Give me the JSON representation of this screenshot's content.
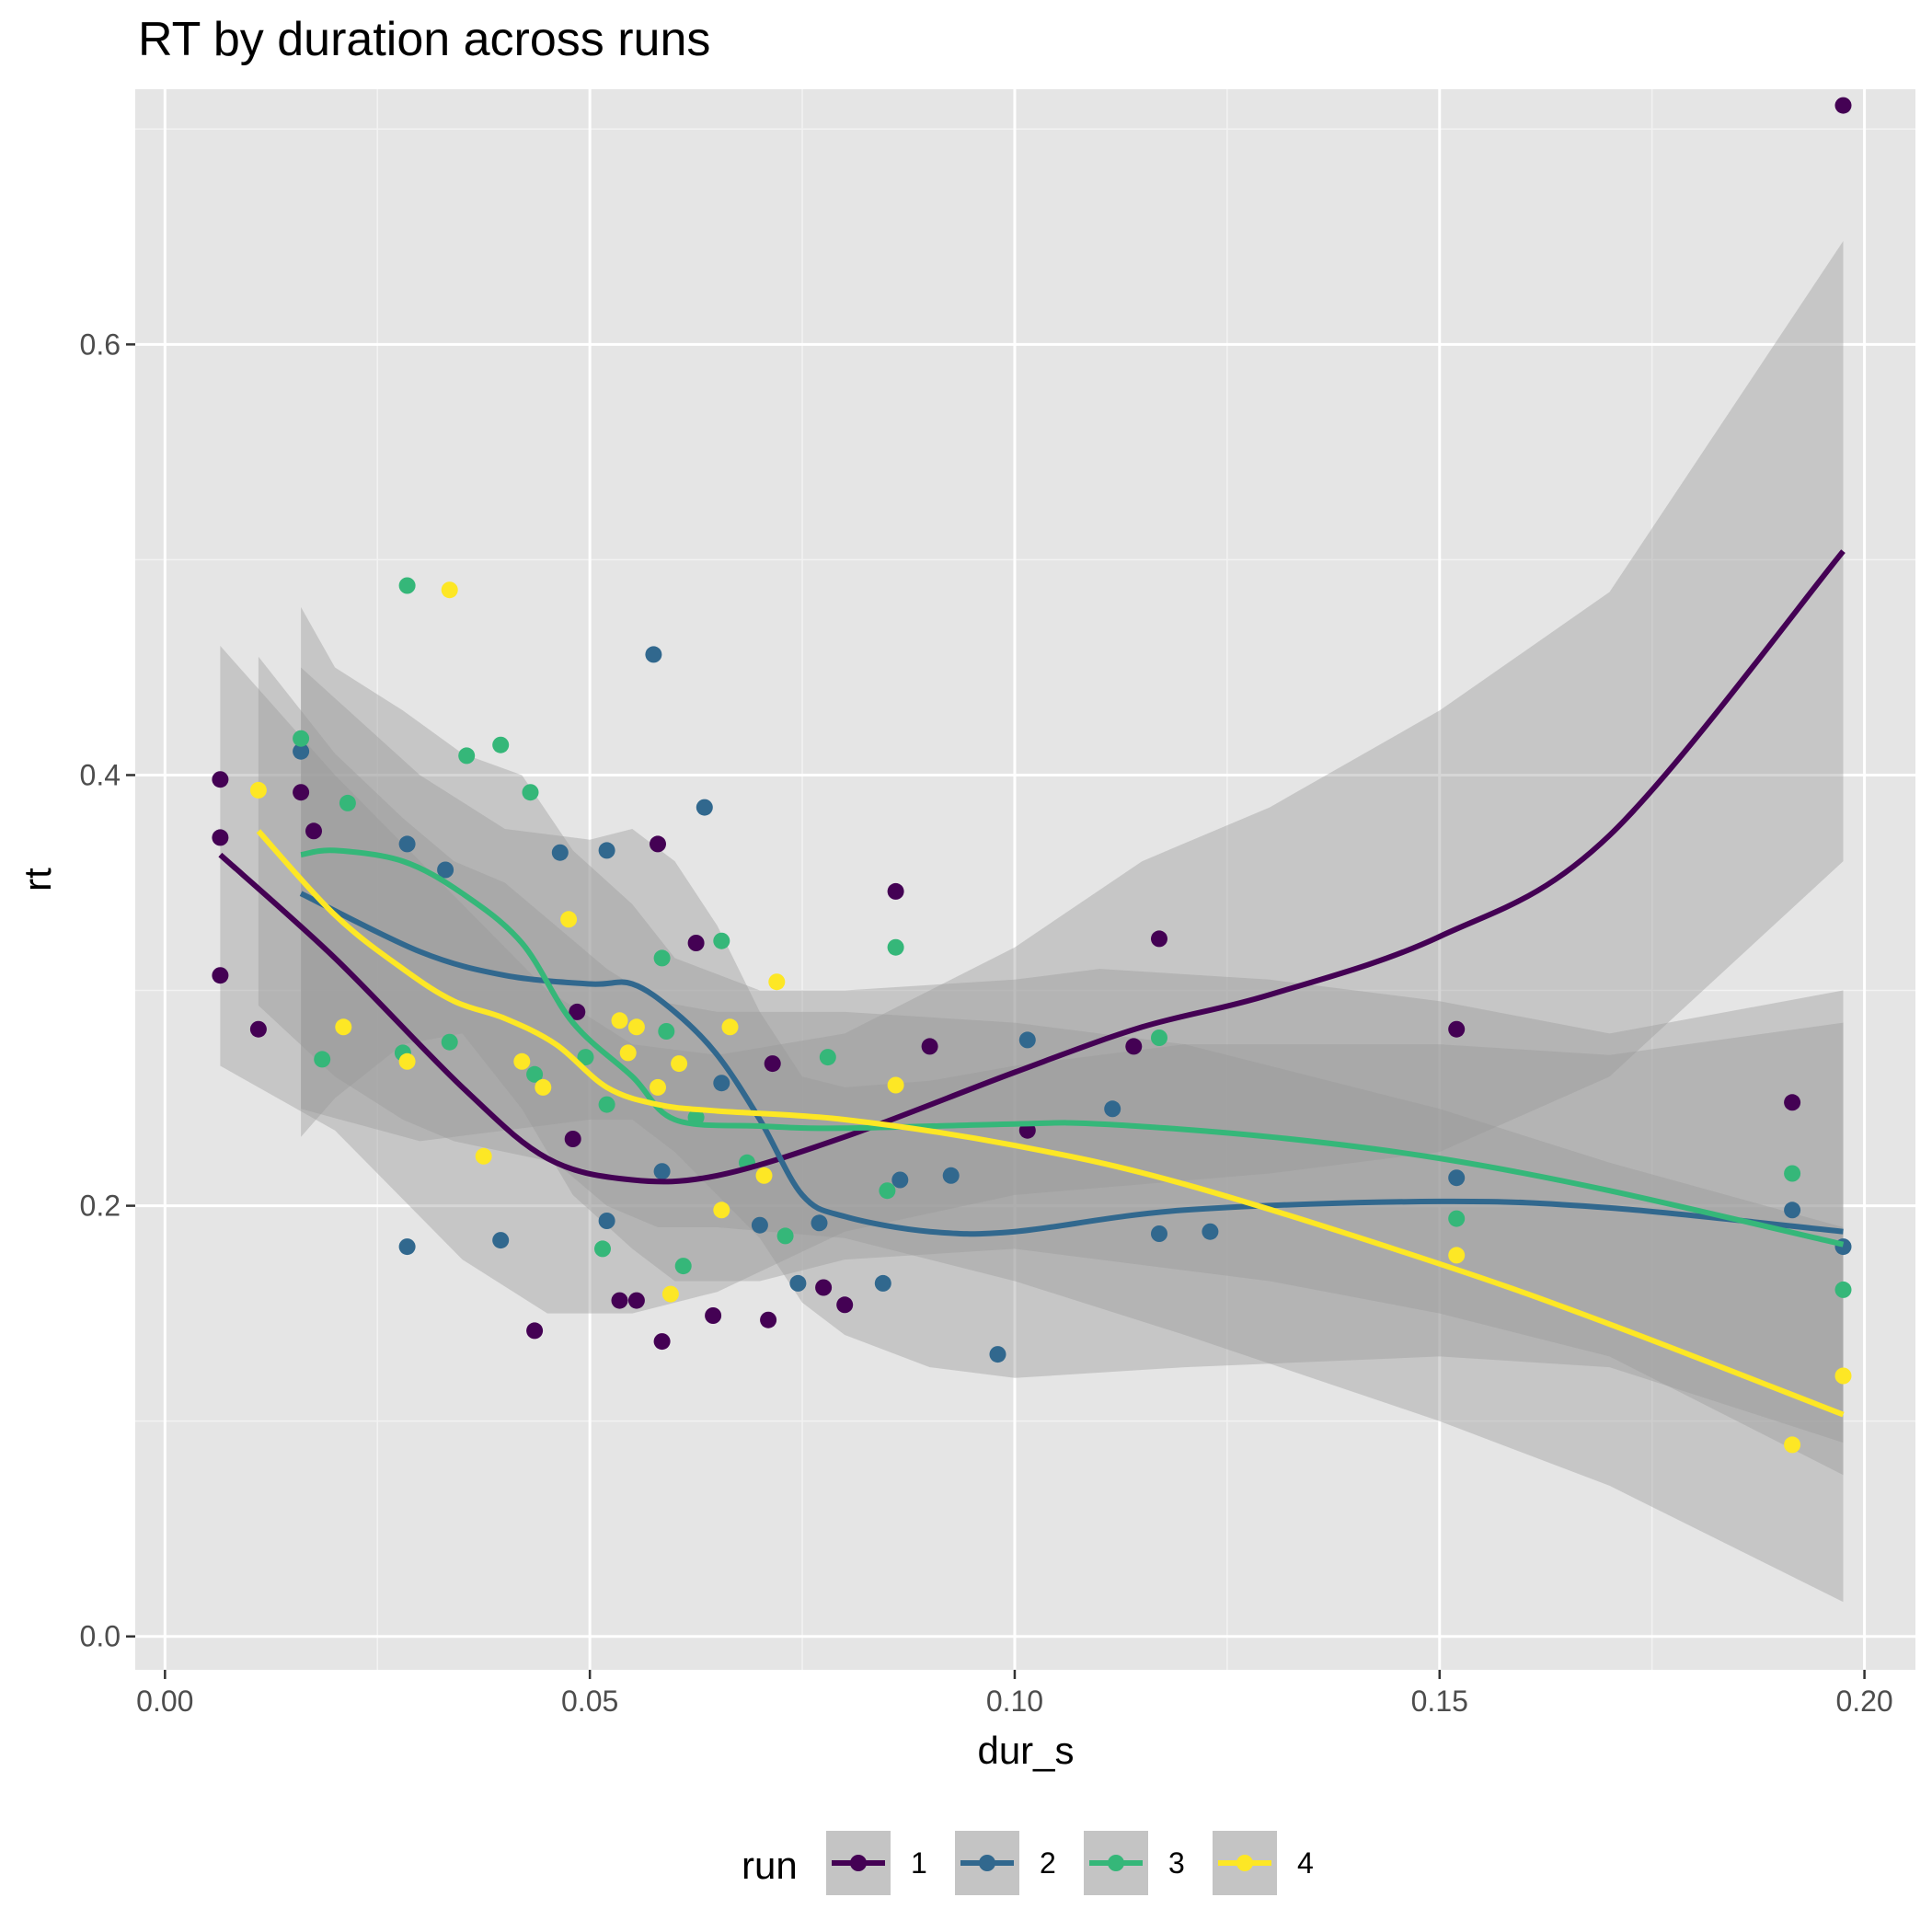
{
  "chart_data": {
    "type": "scatter",
    "title": "RT by duration across runs",
    "xlabel": "dur_s",
    "ylabel": "rt",
    "xlim": [
      -0.0035,
      0.206
    ],
    "ylim": [
      -0.0155,
      0.7185
    ],
    "x_ticks": [
      0.0,
      0.05,
      0.1,
      0.15,
      0.2
    ],
    "x_tick_labels": [
      "0.00",
      "0.05",
      "0.10",
      "0.15",
      "0.20"
    ],
    "y_ticks": [
      0.0,
      0.2,
      0.4,
      0.6
    ],
    "y_tick_labels": [
      "0.0",
      "0.2",
      "0.4",
      "0.6"
    ],
    "grid": true,
    "legend": {
      "title": "run",
      "position": "bottom"
    },
    "series": [
      {
        "name": "1",
        "color": "#440154",
        "points": [
          [
            0.0065,
            0.398
          ],
          [
            0.0065,
            0.371
          ],
          [
            0.0065,
            0.307
          ],
          [
            0.011,
            0.282
          ],
          [
            0.016,
            0.392
          ],
          [
            0.0175,
            0.374
          ],
          [
            0.0435,
            0.142
          ],
          [
            0.0485,
            0.29
          ],
          [
            0.048,
            0.231
          ],
          [
            0.0535,
            0.156
          ],
          [
            0.0555,
            0.156
          ],
          [
            0.058,
            0.368
          ],
          [
            0.0585,
            0.137
          ],
          [
            0.0625,
            0.322
          ],
          [
            0.0645,
            0.149
          ],
          [
            0.071,
            0.147
          ],
          [
            0.0715,
            0.266
          ],
          [
            0.0775,
            0.162
          ],
          [
            0.08,
            0.154
          ],
          [
            0.086,
            0.346
          ],
          [
            0.09,
            0.274
          ],
          [
            0.1015,
            0.235
          ],
          [
            0.114,
            0.274
          ],
          [
            0.117,
            0.324
          ],
          [
            0.152,
            0.282
          ],
          [
            0.1915,
            0.248
          ],
          [
            0.1975,
            0.711
          ]
        ],
        "smooth_x": [
          0.0065,
          0.02,
          0.035,
          0.045,
          0.055,
          0.065,
          0.08,
          0.1,
          0.115,
          0.13,
          0.15,
          0.17,
          0.1975
        ],
        "smooth_y": [
          0.363,
          0.315,
          0.255,
          0.222,
          0.212,
          0.214,
          0.232,
          0.262,
          0.283,
          0.298,
          0.325,
          0.372,
          0.504
        ],
        "band_upper": [
          0.46,
          0.4,
          0.34,
          0.3,
          0.275,
          0.27,
          0.28,
          0.32,
          0.36,
          0.385,
          0.43,
          0.485,
          0.648
        ],
        "band_lower": [
          0.265,
          0.235,
          0.175,
          0.15,
          0.15,
          0.16,
          0.188,
          0.205,
          0.21,
          0.215,
          0.225,
          0.26,
          0.36
        ]
      },
      {
        "name": "2",
        "color": "#31688e",
        "points": [
          [
            0.016,
            0.411
          ],
          [
            0.0285,
            0.368
          ],
          [
            0.0285,
            0.181
          ],
          [
            0.033,
            0.356
          ],
          [
            0.0395,
            0.184
          ],
          [
            0.0465,
            0.364
          ],
          [
            0.052,
            0.365
          ],
          [
            0.052,
            0.193
          ],
          [
            0.0575,
            0.456
          ],
          [
            0.0585,
            0.216
          ],
          [
            0.0635,
            0.385
          ],
          [
            0.0655,
            0.257
          ],
          [
            0.07,
            0.191
          ],
          [
            0.0745,
            0.164
          ],
          [
            0.077,
            0.192
          ],
          [
            0.0845,
            0.164
          ],
          [
            0.0865,
            0.212
          ],
          [
            0.0925,
            0.214
          ],
          [
            0.098,
            0.131
          ],
          [
            0.1015,
            0.277
          ],
          [
            0.1115,
            0.245
          ],
          [
            0.117,
            0.187
          ],
          [
            0.123,
            0.188
          ],
          [
            0.152,
            0.213
          ],
          [
            0.1915,
            0.198
          ],
          [
            0.1975,
            0.181
          ]
        ],
        "smooth_x": [
          0.016,
          0.03,
          0.04,
          0.05,
          0.055,
          0.06,
          0.065,
          0.07,
          0.075,
          0.08,
          0.09,
          0.1,
          0.12,
          0.15,
          0.17,
          0.1975
        ],
        "smooth_y": [
          0.345,
          0.318,
          0.307,
          0.303,
          0.303,
          0.29,
          0.27,
          0.24,
          0.205,
          0.195,
          0.188,
          0.188,
          0.198,
          0.202,
          0.199,
          0.188
        ],
        "band_upper": [
          0.45,
          0.4,
          0.375,
          0.37,
          0.375,
          0.36,
          0.33,
          0.29,
          0.26,
          0.255,
          0.258,
          0.265,
          0.275,
          0.275,
          0.27,
          0.285
        ],
        "band_lower": [
          0.245,
          0.23,
          0.235,
          0.24,
          0.24,
          0.225,
          0.205,
          0.185,
          0.155,
          0.14,
          0.125,
          0.12,
          0.125,
          0.13,
          0.125,
          0.09
        ]
      },
      {
        "name": "3",
        "color": "#35b779",
        "points": [
          [
            0.016,
            0.417
          ],
          [
            0.0185,
            0.268
          ],
          [
            0.0215,
            0.387
          ],
          [
            0.028,
            0.271
          ],
          [
            0.0285,
            0.488
          ],
          [
            0.0335,
            0.276
          ],
          [
            0.0355,
            0.409
          ],
          [
            0.0395,
            0.414
          ],
          [
            0.043,
            0.392
          ],
          [
            0.0435,
            0.261
          ],
          [
            0.0495,
            0.269
          ],
          [
            0.052,
            0.247
          ],
          [
            0.0515,
            0.18
          ],
          [
            0.0585,
            0.315
          ],
          [
            0.059,
            0.281
          ],
          [
            0.0625,
            0.241
          ],
          [
            0.061,
            0.172
          ],
          [
            0.0655,
            0.323
          ],
          [
            0.0685,
            0.22
          ],
          [
            0.073,
            0.186
          ],
          [
            0.078,
            0.269
          ],
          [
            0.085,
            0.207
          ],
          [
            0.086,
            0.32
          ],
          [
            0.117,
            0.278
          ],
          [
            0.152,
            0.194
          ],
          [
            0.1915,
            0.215
          ],
          [
            0.1975,
            0.161
          ]
        ],
        "smooth_x": [
          0.016,
          0.02,
          0.028,
          0.035,
          0.042,
          0.048,
          0.055,
          0.06,
          0.07,
          0.08,
          0.1,
          0.11,
          0.13,
          0.15,
          0.17,
          0.1975
        ],
        "smooth_y": [
          0.363,
          0.365,
          0.36,
          0.345,
          0.322,
          0.285,
          0.26,
          0.24,
          0.237,
          0.236,
          0.238,
          0.238,
          0.232,
          0.222,
          0.207,
          0.182
        ],
        "band_upper": [
          0.478,
          0.45,
          0.43,
          0.41,
          0.4,
          0.365,
          0.34,
          0.315,
          0.3,
          0.3,
          0.305,
          0.31,
          0.305,
          0.295,
          0.28,
          0.3
        ],
        "band_lower": [
          0.232,
          0.25,
          0.275,
          0.28,
          0.245,
          0.205,
          0.18,
          0.165,
          0.165,
          0.175,
          0.18,
          0.175,
          0.165,
          0.15,
          0.13,
          0.075
        ]
      },
      {
        "name": "4",
        "color": "#fde725",
        "points": [
          [
            0.011,
            0.393
          ],
          [
            0.021,
            0.283
          ],
          [
            0.0285,
            0.267
          ],
          [
            0.0335,
            0.486
          ],
          [
            0.0375,
            0.223
          ],
          [
            0.042,
            0.267
          ],
          [
            0.0445,
            0.255
          ],
          [
            0.0475,
            0.333
          ],
          [
            0.0535,
            0.286
          ],
          [
            0.0545,
            0.271
          ],
          [
            0.0555,
            0.283
          ],
          [
            0.058,
            0.255
          ],
          [
            0.0595,
            0.159
          ],
          [
            0.0605,
            0.266
          ],
          [
            0.0655,
            0.198
          ],
          [
            0.0665,
            0.283
          ],
          [
            0.0705,
            0.214
          ],
          [
            0.072,
            0.304
          ],
          [
            0.086,
            0.256
          ],
          [
            0.152,
            0.177
          ],
          [
            0.1915,
            0.089
          ],
          [
            0.1975,
            0.121
          ]
        ],
        "smooth_x": [
          0.011,
          0.02,
          0.028,
          0.034,
          0.04,
          0.046,
          0.052,
          0.058,
          0.065,
          0.08,
          0.1,
          0.12,
          0.15,
          0.17,
          0.1975
        ],
        "smooth_y": [
          0.374,
          0.335,
          0.31,
          0.295,
          0.287,
          0.275,
          0.255,
          0.247,
          0.244,
          0.24,
          0.228,
          0.21,
          0.173,
          0.145,
          0.103
        ],
        "band_upper": [
          0.455,
          0.41,
          0.38,
          0.36,
          0.35,
          0.33,
          0.31,
          0.295,
          0.29,
          0.29,
          0.285,
          0.275,
          0.245,
          0.22,
          0.19
        ],
        "band_lower": [
          0.293,
          0.26,
          0.24,
          0.23,
          0.225,
          0.22,
          0.2,
          0.19,
          0.19,
          0.185,
          0.165,
          0.14,
          0.1,
          0.07,
          0.016
        ]
      }
    ]
  }
}
